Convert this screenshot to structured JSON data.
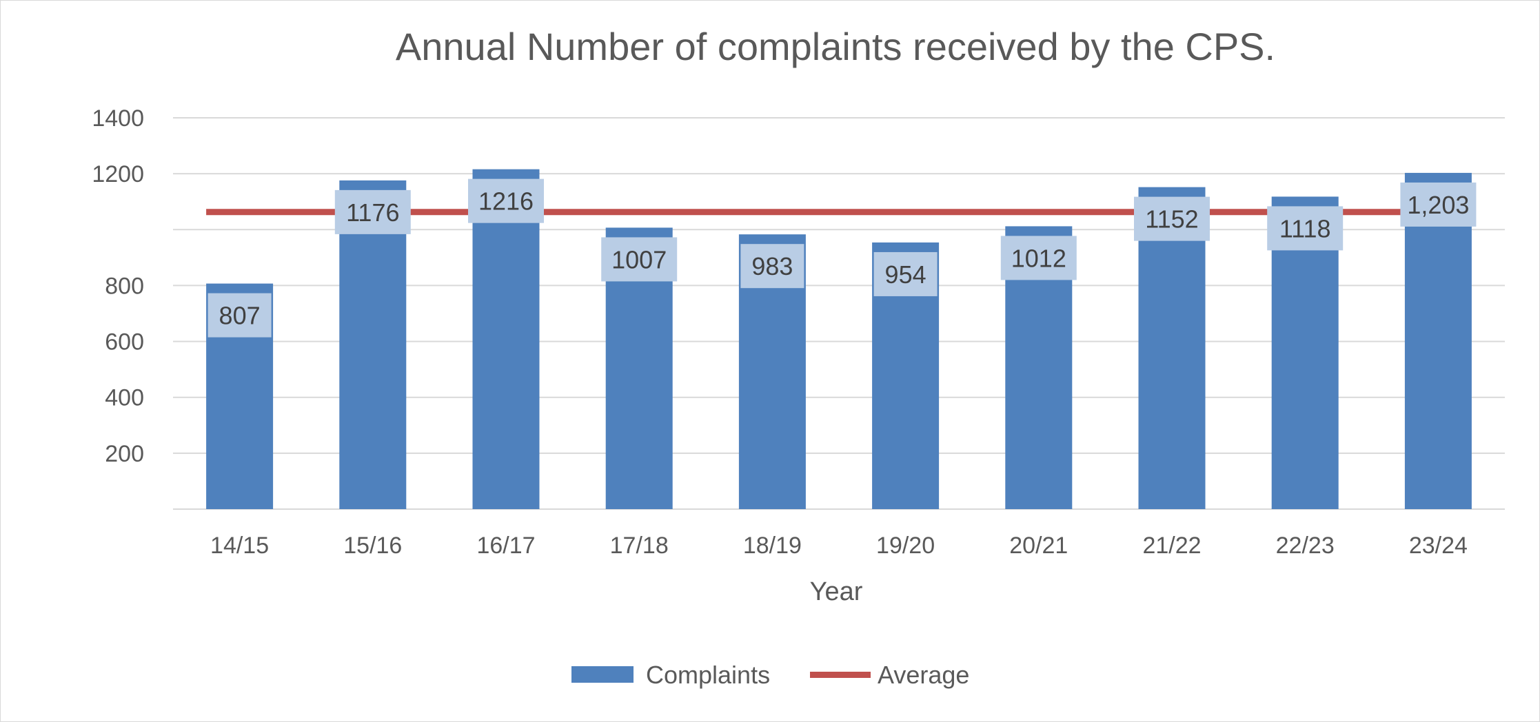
{
  "chart_data": {
    "type": "bar",
    "title": "Annual Number of complaints received by the CPS.",
    "xlabel": "Year",
    "ylabel": "",
    "categories": [
      "14/15",
      "15/16",
      "16/17",
      "17/18",
      "18/19",
      "19/20",
      "20/21",
      "21/22",
      "22/23",
      "23/24"
    ],
    "series": [
      {
        "name": "Complaints",
        "type": "bar",
        "color": "#4f81bd",
        "values": [
          807,
          1176,
          1216,
          1007,
          983,
          954,
          1012,
          1152,
          1118,
          1203
        ],
        "labels": [
          "807",
          "1176",
          "1216",
          "1007",
          "983",
          "954",
          "1012",
          "1152",
          "1118",
          "1,203"
        ]
      },
      {
        "name": "Average",
        "type": "line",
        "color": "#c0504d",
        "value": 1063
      }
    ],
    "ylim": [
      0,
      1400
    ],
    "yticks": [
      200,
      400,
      600,
      800,
      1200,
      1400
    ],
    "gridlines": [
      200,
      400,
      600,
      800,
      1000,
      1200,
      1400
    ],
    "grid": true,
    "legend_position": "bottom",
    "data_label_fill": "#b9cde5"
  }
}
